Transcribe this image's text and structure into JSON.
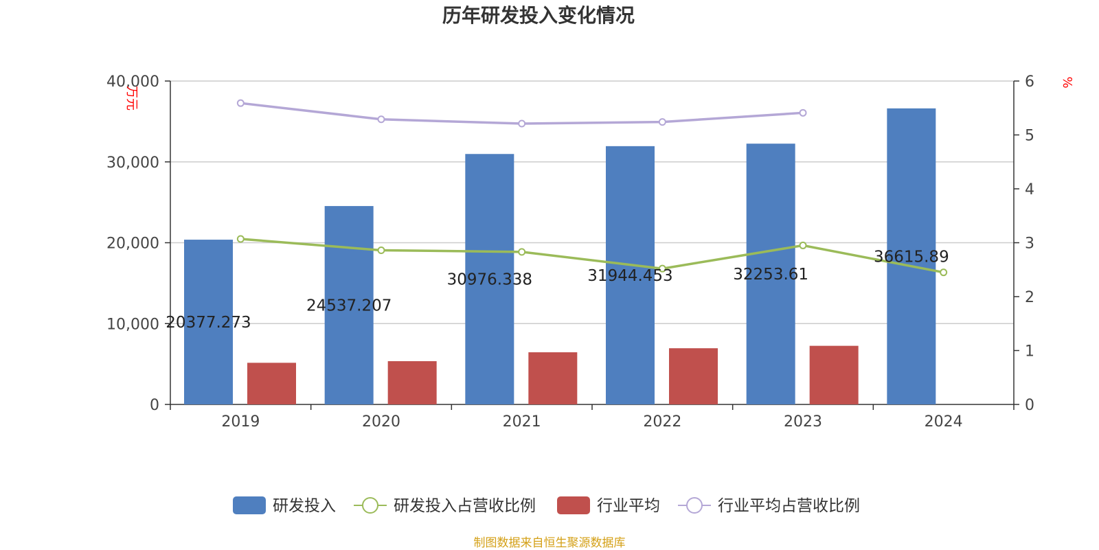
{
  "colors": {
    "bar_rd": "#4f7fbf",
    "bar_industry": "#c0504d",
    "line_rd_ratio": "#9bbb59",
    "line_industry_ratio": "#b4a7d6",
    "axis_unit": "#ff0000",
    "footer": "#d4a017",
    "title": "#333333",
    "grid": "#cccccc"
  },
  "footer": {
    "source": "制图数据来自恒生聚源数据库"
  },
  "chart_data": {
    "type": "bar",
    "title": "历年研发投入变化情况",
    "categories": [
      "2019",
      "2020",
      "2021",
      "2022",
      "2023",
      "2024"
    ],
    "y_left": {
      "unit": "万元",
      "ylim": [
        0,
        40000
      ],
      "ticks": [
        "0",
        "10,000",
        "20,000",
        "30,000",
        "40,000"
      ]
    },
    "y_right": {
      "unit": "%",
      "ylim": [
        0,
        6
      ],
      "ticks": [
        "0",
        "1",
        "2",
        "3",
        "4",
        "5",
        "6"
      ]
    },
    "series": [
      {
        "name": "研发投入",
        "kind": "bar",
        "axis": "left",
        "values": [
          20377.273,
          24537.207,
          30976.338,
          31944.453,
          32253.61,
          36615.89
        ],
        "labels": [
          "20377.273",
          "24537.207",
          "30976.338",
          "31944.453",
          "32253.61",
          "36615.89"
        ]
      },
      {
        "name": "研发投入占营收比例",
        "kind": "line",
        "axis": "right",
        "values": [
          3.07,
          2.86,
          2.83,
          2.52,
          2.95,
          2.45
        ]
      },
      {
        "name": "行业平均",
        "kind": "bar",
        "axis": "left",
        "values": [
          5150,
          5350,
          6450,
          6950,
          7250,
          null
        ]
      },
      {
        "name": "行业平均占营收比例",
        "kind": "line",
        "axis": "right",
        "values": [
          5.59,
          5.29,
          5.21,
          5.24,
          5.41,
          null
        ]
      }
    ],
    "legend": {
      "position": "bottom"
    },
    "grid": true
  }
}
